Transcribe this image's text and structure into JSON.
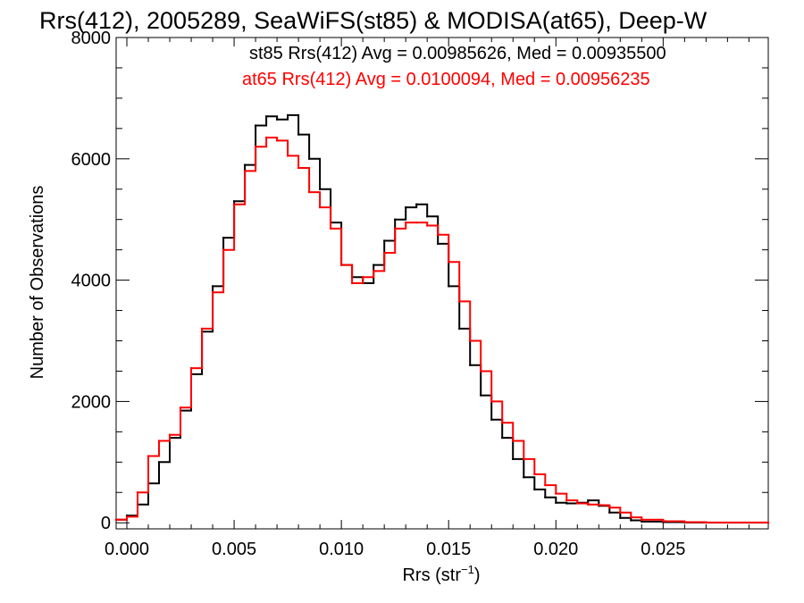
{
  "chart_data": {
    "type": "line",
    "title": "Rrs(412), 2005289, SeaWiFS(st85) & MODISA(at65), Deep-W",
    "xlabel_main": "Rrs (str",
    "xlabel_sup": "−1",
    "xlabel_close": ")",
    "ylabel": "Number of Observations",
    "xlim": [
      -0.0005,
      0.0299
    ],
    "ylim": [
      -100,
      8000
    ],
    "x_ticks": [
      0.0,
      0.005,
      0.01,
      0.015,
      0.02,
      0.025
    ],
    "x_tick_labels": [
      "0.000",
      "0.005",
      "0.010",
      "0.015",
      "0.020",
      "0.025"
    ],
    "y_ticks": [
      0,
      2000,
      4000,
      6000,
      8000
    ],
    "y_tick_labels": [
      "0",
      "2000",
      "4000",
      "6000",
      "8000"
    ],
    "grid": false,
    "legend_position": "top-right",
    "colors": {
      "st85": "#000000",
      "at65": "#ff0000"
    },
    "x": [
      -0.0005,
      0.0,
      0.0005,
      0.001,
      0.0015,
      0.002,
      0.0025,
      0.003,
      0.0035,
      0.004,
      0.0045,
      0.005,
      0.0055,
      0.006,
      0.0065,
      0.007,
      0.0075,
      0.008,
      0.0085,
      0.009,
      0.0095,
      0.01,
      0.0105,
      0.011,
      0.0115,
      0.012,
      0.0125,
      0.013,
      0.0135,
      0.014,
      0.0145,
      0.015,
      0.0155,
      0.016,
      0.0165,
      0.017,
      0.0175,
      0.018,
      0.0185,
      0.019,
      0.0195,
      0.02,
      0.0205,
      0.021,
      0.0215,
      0.022,
      0.0225,
      0.023,
      0.0235,
      0.024,
      0.025,
      0.026,
      0.027,
      0.0299
    ],
    "series": [
      {
        "name": "st85 Rrs(412) Avg = 0.00985626, Med = 0.00935500",
        "values": [
          50,
          120,
          300,
          650,
          1000,
          1400,
          1850,
          2450,
          3150,
          3900,
          4700,
          5300,
          5900,
          6550,
          6700,
          6650,
          6720,
          6400,
          6000,
          5500,
          4950,
          4250,
          4050,
          3950,
          4250,
          4650,
          5000,
          5200,
          5250,
          5050,
          4600,
          3900,
          3200,
          2600,
          2100,
          1700,
          1400,
          1050,
          750,
          550,
          420,
          330,
          320,
          330,
          370,
          280,
          170,
          80,
          40,
          20,
          10,
          5,
          3,
          0
        ]
      },
      {
        "name": "at65 Rrs(412) Avg = 0.0100094, Med = 0.00956235",
        "values": [
          50,
          100,
          500,
          1100,
          1350,
          1450,
          1900,
          2550,
          3200,
          3800,
          4500,
          5250,
          5800,
          6200,
          6350,
          6300,
          6050,
          5850,
          5450,
          5200,
          4850,
          4250,
          3950,
          4050,
          4150,
          4450,
          4850,
          4950,
          4950,
          4900,
          4750,
          4300,
          3650,
          3000,
          2500,
          2000,
          1650,
          1350,
          1050,
          800,
          620,
          480,
          370,
          320,
          300,
          290,
          250,
          170,
          90,
          50,
          25,
          10,
          5,
          0
        ]
      }
    ]
  }
}
